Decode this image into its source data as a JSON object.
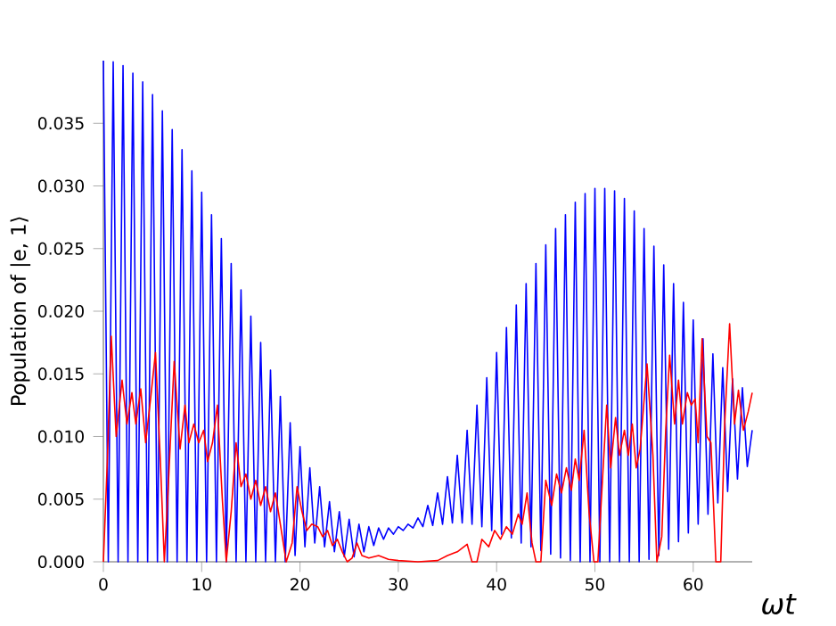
{
  "chart_data": {
    "type": "line",
    "xlabel": "ωt",
    "ylabel": "Population of |e, 1⟩",
    "xlim": [
      0,
      66
    ],
    "ylim": [
      0,
      0.04
    ],
    "xticks": [
      0,
      10,
      20,
      30,
      40,
      50,
      60
    ],
    "yticks": [
      {
        "value": 0,
        "label": "0.000"
      },
      {
        "value": 0.005,
        "label": "0.005"
      },
      {
        "value": 0.01,
        "label": "0.010"
      },
      {
        "value": 0.015,
        "label": "0.015"
      },
      {
        "value": 0.02,
        "label": "0.020"
      },
      {
        "value": 0.025,
        "label": "0.025"
      },
      {
        "value": 0.03,
        "label": "0.030"
      },
      {
        "value": 0.035,
        "label": "0.035"
      }
    ],
    "grid": false,
    "marker": "none",
    "line_style": "solid",
    "series": [
      {
        "color": "#0000ff",
        "x": [
          0,
          0.5,
          1,
          1.5,
          2,
          2.5,
          3,
          3.5,
          4,
          4.5,
          5,
          5.5,
          6,
          6.5,
          7,
          7.5,
          8,
          8.5,
          9,
          9.5,
          10,
          10.5,
          11,
          11.5,
          12,
          12.5,
          13,
          13.5,
          14,
          14.5,
          15,
          15.5,
          16,
          16.5,
          17,
          17.5,
          18,
          18.5,
          19,
          19.5,
          20,
          20.5,
          21,
          21.5,
          22,
          22.5,
          23,
          23.5,
          24,
          24.5,
          25,
          25.5,
          26,
          26.5,
          27,
          27.5,
          28,
          28.5,
          29,
          29.5,
          30,
          30.5,
          31,
          31.5,
          32,
          32.5,
          33,
          33.5,
          34,
          34.5,
          35,
          35.5,
          36,
          36.5,
          37,
          37.5,
          38,
          38.5,
          39,
          39.5,
          40,
          40.5,
          41,
          41.5,
          42,
          42.5,
          43,
          43.5,
          44,
          44.5,
          45,
          45.5,
          46,
          46.5,
          47,
          47.5,
          48,
          48.5,
          49,
          49.5,
          50,
          50.5,
          51,
          51.5,
          52,
          52.5,
          53,
          53.5,
          54,
          54.5,
          55,
          55.5,
          56,
          56.5,
          57,
          57.5,
          58,
          58.5,
          59,
          59.5,
          60,
          60.5,
          61,
          61.5,
          62,
          62.5,
          63,
          63.5,
          64,
          64.5,
          65,
          65.5,
          66
        ],
        "values": [
          0.04,
          0,
          0.0399,
          0,
          0.0396,
          0,
          0.039,
          0,
          0.0383,
          0,
          0.0373,
          0,
          0.036,
          0,
          0.0345,
          0,
          0.0329,
          0,
          0.0312,
          0,
          0.0295,
          0,
          0.0277,
          0,
          0.0258,
          0,
          0.0238,
          0,
          0.0217,
          0,
          0.0196,
          0,
          0.0175,
          0,
          0.0153,
          0,
          0.0132,
          0,
          0.0111,
          0.0005,
          0.0092,
          0.0012,
          0.0075,
          0.0015,
          0.006,
          0.0012,
          0.0048,
          0.0008,
          0.004,
          0.0004,
          0.0034,
          0.0004,
          0.003,
          0.0008,
          0.0028,
          0.0013,
          0.0027,
          0.0018,
          0.0027,
          0.0022,
          0.0028,
          0.0025,
          0.003,
          0.0027,
          0.0035,
          0.0028,
          0.0045,
          0.0029,
          0.0055,
          0.003,
          0.0068,
          0.0031,
          0.0085,
          0.0031,
          0.0105,
          0.003,
          0.0125,
          0.0028,
          0.0147,
          0.0025,
          0.0167,
          0.0022,
          0.0187,
          0.0019,
          0.0205,
          0.0015,
          0.0222,
          0.0012,
          0.0238,
          0.0009,
          0.0253,
          0.0006,
          0.0266,
          0.0003,
          0.0277,
          0.0001,
          0.0287,
          0,
          0.0294,
          0,
          0.0298,
          0,
          0.0298,
          0,
          0.0296,
          0,
          0.029,
          0,
          0.028,
          0,
          0.0266,
          0.0002,
          0.0252,
          0.0005,
          0.0237,
          0.001,
          0.0222,
          0.0016,
          0.0207,
          0.0023,
          0.0193,
          0.003,
          0.0178,
          0.0038,
          0.0166,
          0.0047,
          0.0155,
          0.0056,
          0.0146,
          0.0066,
          0.0139,
          0.0076,
          0.0105
        ]
      },
      {
        "color": "#ff0000",
        "x": [
          0,
          0.4,
          0.8,
          1.3,
          1.9,
          2.4,
          2.9,
          3.3,
          3.8,
          4.3,
          4.8,
          5.3,
          5.8,
          6.2,
          6.6,
          7.2,
          7.8,
          8.3,
          8.7,
          9.2,
          9.7,
          10.2,
          10.6,
          11.1,
          11.6,
          12.1,
          12.5,
          13,
          13.5,
          14,
          14.5,
          15,
          15.5,
          16,
          16.5,
          17,
          17.5,
          18,
          18.6,
          19.2,
          19.7,
          20.2,
          20.7,
          21.2,
          21.8,
          22.3,
          22.8,
          23.3,
          23.8,
          24.3,
          24.8,
          25.3,
          25.8,
          26.3,
          27,
          28,
          29,
          30,
          32,
          34,
          35,
          36,
          37,
          37.5,
          38,
          38.5,
          39.2,
          39.8,
          40.4,
          41,
          41.6,
          42.2,
          42.6,
          43.1,
          43.6,
          44,
          44.5,
          45,
          45.6,
          46.1,
          46.6,
          47.1,
          47.6,
          48,
          48.4,
          48.9,
          49.4,
          49.9,
          50.3,
          50.8,
          51.2,
          51.6,
          52.1,
          52.5,
          53,
          53.4,
          53.8,
          54.2,
          54.6,
          55.3,
          55.9,
          56.3,
          56.8,
          57.2,
          57.6,
          58.1,
          58.5,
          58.9,
          59.4,
          59.8,
          60.2,
          60.5,
          60.9,
          61.4,
          61.8,
          62.3,
          62.8,
          63.2,
          63.7,
          64.2,
          64.6,
          65.1,
          65.6,
          66
        ],
        "values": [
          0,
          0.008,
          0.018,
          0.01,
          0.0145,
          0.011,
          0.0135,
          0.011,
          0.0138,
          0.0095,
          0.013,
          0.0167,
          0.008,
          0,
          0.006,
          0.016,
          0.009,
          0.0125,
          0.0095,
          0.011,
          0.0095,
          0.0105,
          0.008,
          0.0095,
          0.0125,
          0.005,
          0,
          0.004,
          0.0095,
          0.006,
          0.007,
          0.005,
          0.0065,
          0.0045,
          0.006,
          0.004,
          0.0055,
          0.003,
          0,
          0.0015,
          0.006,
          0.004,
          0.0025,
          0.003,
          0.0028,
          0.002,
          0.0025,
          0.0013,
          0.0018,
          0.0008,
          0,
          0.0003,
          0.0015,
          0.0005,
          0.0003,
          0.0005,
          0.0002,
          0.0001,
          0,
          0.0001,
          0.0005,
          0.0008,
          0.0014,
          0,
          0,
          0.0018,
          0.0012,
          0.0025,
          0.0018,
          0.0028,
          0.0022,
          0.0038,
          0.003,
          0.0055,
          0.0015,
          0,
          0,
          0.0065,
          0.0045,
          0.007,
          0.0055,
          0.0075,
          0.0057,
          0.0082,
          0.0065,
          0.0105,
          0.004,
          0,
          0,
          0.007,
          0.0125,
          0.0075,
          0.0115,
          0.0085,
          0.0105,
          0.0085,
          0.011,
          0.0075,
          0.009,
          0.0158,
          0.0085,
          0,
          0.002,
          0.0105,
          0.0165,
          0.011,
          0.0145,
          0.011,
          0.0135,
          0.0125,
          0.013,
          0.0095,
          0.0178,
          0.01,
          0.0095,
          0,
          0,
          0.011,
          0.019,
          0.011,
          0.0137,
          0.0105,
          0.012,
          0.0135
        ]
      }
    ]
  }
}
